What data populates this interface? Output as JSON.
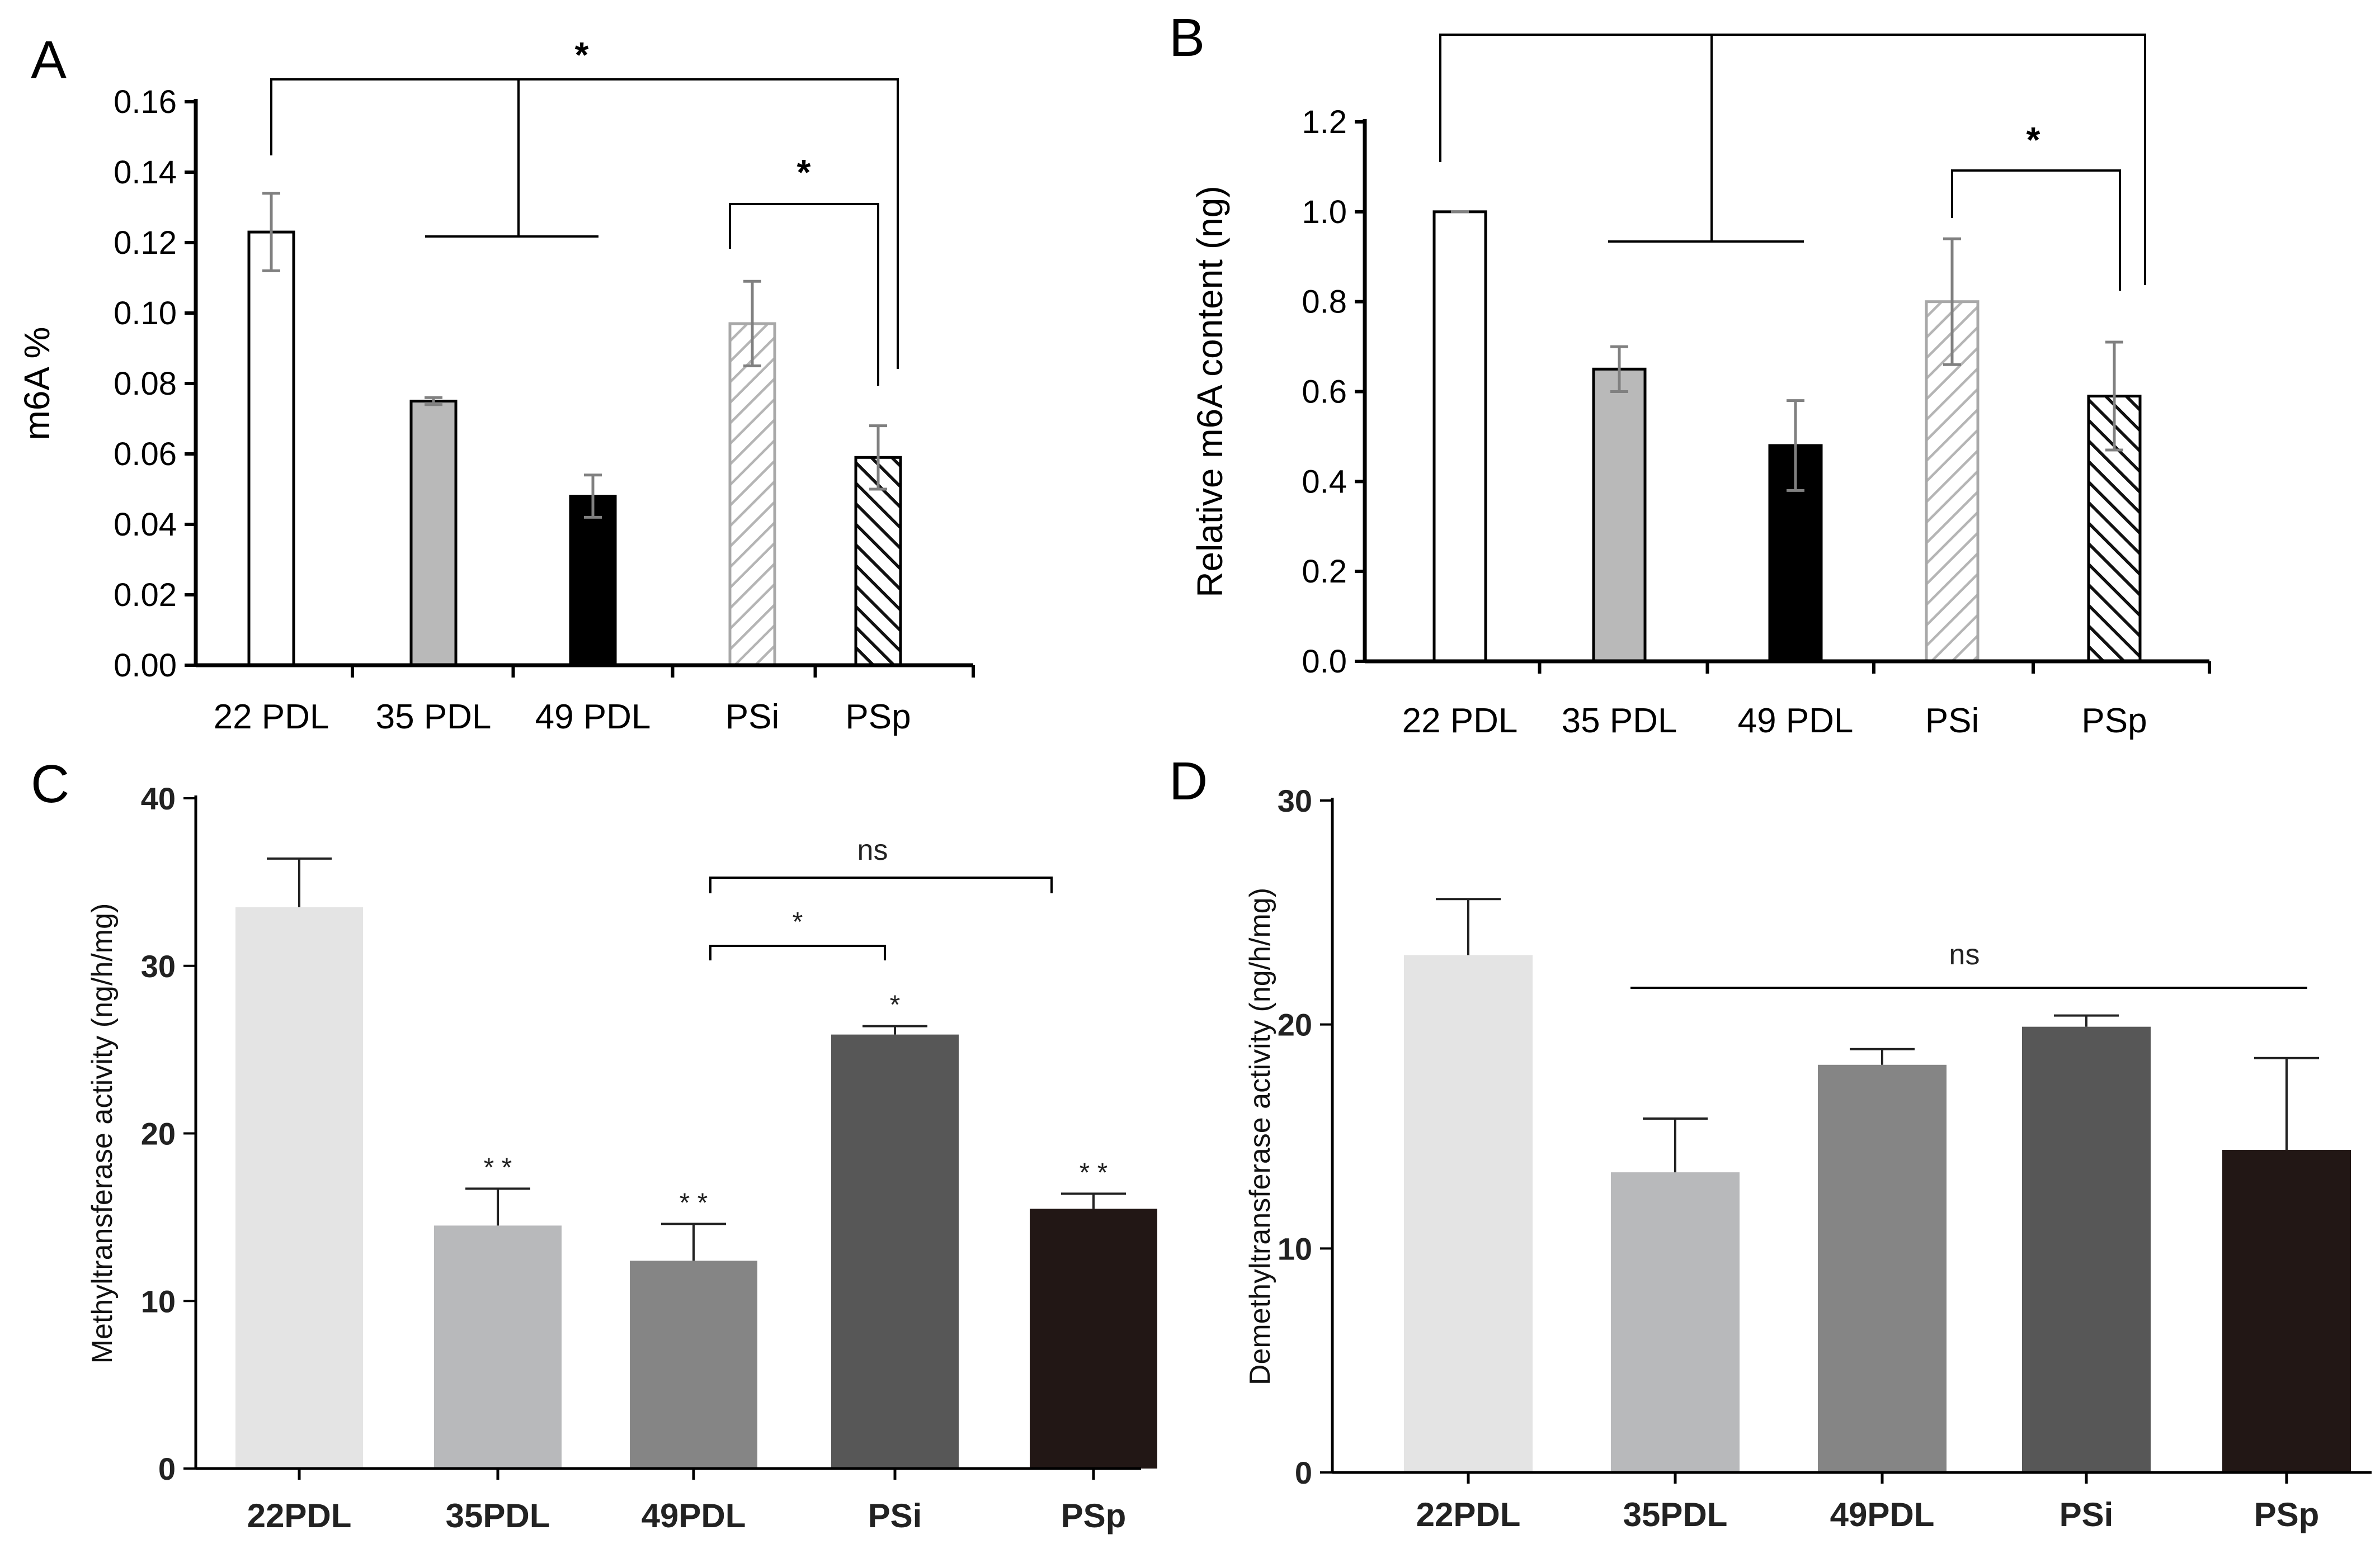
{
  "chart_data": [
    {
      "panel": "A",
      "type": "bar",
      "categories": [
        "22 PDL",
        "35 PDL",
        "49 PDL",
        "PSi",
        "PSp"
      ],
      "values": [
        0.123,
        0.075,
        0.048,
        0.097,
        0.059
      ],
      "errors": [
        0.011,
        0.001,
        0.006,
        0.012,
        0.009
      ],
      "styles": [
        "white",
        "gray",
        "black",
        "hatch-light",
        "hatch-dark"
      ],
      "ylabel": "m6A %",
      "xlabel": "",
      "ylim": [
        0,
        0.16
      ],
      "yticks": [
        "0.00",
        "0.02",
        "0.04",
        "0.06",
        "0.08",
        "0.10",
        "0.12",
        "0.14",
        "0.16"
      ],
      "significance": [
        "*",
        "*"
      ]
    },
    {
      "panel": "B",
      "type": "bar",
      "categories": [
        "22 PDL",
        "35 PDL",
        "49 PDL",
        "PSi",
        "PSp"
      ],
      "values": [
        1.0,
        0.65,
        0.48,
        0.8,
        0.59
      ],
      "errors": [
        0.0,
        0.05,
        0.1,
        0.14,
        0.12
      ],
      "styles": [
        "white",
        "gray",
        "black",
        "hatch-light",
        "hatch-dark"
      ],
      "ylabel": "Relative m6A content (ng)",
      "xlabel": "",
      "ylim": [
        0,
        1.2
      ],
      "yticks": [
        "0.0",
        "0.2",
        "0.4",
        "0.6",
        "0.8",
        "1.0",
        "1.2"
      ],
      "significance": [
        "*"
      ]
    },
    {
      "panel": "C",
      "type": "bar",
      "categories": [
        "22PDL",
        "35PDL",
        "49PDL",
        "PSi",
        "PSp"
      ],
      "values": [
        33.5,
        14.5,
        12.4,
        25.9,
        15.5
      ],
      "errors": [
        2.9,
        2.2,
        2.2,
        0.5,
        0.9
      ],
      "colors": [
        "#e4e4e4",
        "#b8b9bb",
        "#858585",
        "#575757",
        "#221715"
      ],
      "bar_labels": [
        "",
        "* *",
        "* *",
        "*",
        "* *"
      ],
      "ylabel": "Methyltransferase activity (ng/h/mg)",
      "xlabel": "",
      "ylim": [
        0,
        40
      ],
      "yticks": [
        "0",
        "10",
        "20",
        "30",
        "40"
      ],
      "brackets": [
        "*",
        "ns"
      ]
    },
    {
      "panel": "D",
      "type": "bar",
      "categories": [
        "22PDL",
        "35PDL",
        "49PDL",
        "PSi",
        "PSp"
      ],
      "values": [
        23.1,
        13.4,
        18.2,
        19.9,
        14.4
      ],
      "errors": [
        2.5,
        2.4,
        0.7,
        0.5,
        4.1
      ],
      "colors": [
        "#e4e4e4",
        "#b8b9bb",
        "#858585",
        "#575757",
        "#221715"
      ],
      "ylabel": "Demethyltransferase activity (ng/h/mg)",
      "xlabel": "",
      "ylim": [
        0,
        30
      ],
      "yticks": [
        "0",
        "10",
        "20",
        "30"
      ],
      "brackets": [
        "ns"
      ]
    }
  ]
}
